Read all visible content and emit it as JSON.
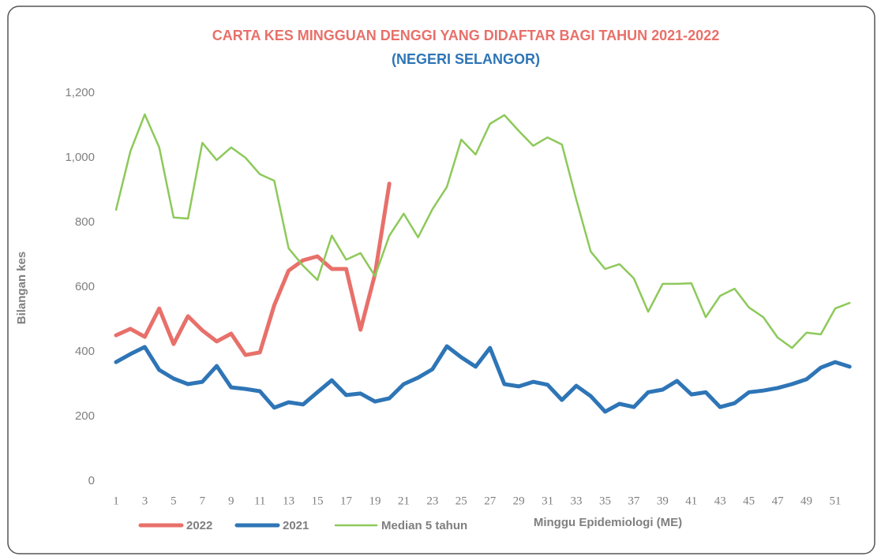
{
  "chart_data": {
    "type": "line",
    "title": "CARTA KES MINGGUAN DENGGI YANG DIDAFTAR BAGI TAHUN 2021-2022",
    "subtitle": "(NEGERI SELANGOR)",
    "y_label": "Bilangan kes",
    "x_label": "Minggu Epidemiologi (ME)",
    "categories": [
      1,
      null,
      3,
      null,
      5,
      null,
      7,
      null,
      9,
      null,
      11,
      null,
      13,
      null,
      15,
      null,
      17,
      null,
      19,
      null,
      21,
      null,
      23,
      null,
      25,
      null,
      27,
      null,
      29,
      null,
      31,
      null,
      33,
      null,
      35,
      null,
      37,
      null,
      39,
      null,
      41,
      null,
      43,
      null,
      45,
      null,
      47,
      null,
      49,
      null,
      51,
      null
    ],
    "ylim": [
      0,
      1200
    ],
    "yticks": [
      0,
      200,
      400,
      600,
      800,
      {
        "value": 1000,
        "label": "1,000"
      },
      {
        "value": 1200,
        "label": "1,200"
      }
    ],
    "grid": false,
    "legend": "bottom-left",
    "series": [
      {
        "name": "2022",
        "color": "#e8706a",
        "values": [
          451,
          471,
          446,
          534,
          424,
          510,
          466,
          432,
          456,
          390,
          398,
          544,
          651,
          683,
          695,
          656,
          656,
          468,
          640,
          920,
          null,
          null,
          null,
          null,
          null,
          null,
          null,
          null,
          null,
          null,
          null,
          null,
          null,
          null,
          null,
          null,
          null,
          null,
          null,
          null,
          null,
          null,
          null,
          null,
          null,
          null,
          null,
          null,
          null,
          null,
          null,
          null
        ]
      },
      {
        "name": "2021",
        "color": "#2e75b6",
        "values": [
          368,
          393,
          415,
          344,
          317,
          300,
          307,
          356,
          290,
          285,
          278,
          227,
          244,
          237,
          275,
          312,
          266,
          271,
          246,
          256,
          300,
          320,
          346,
          417,
          383,
          354,
          412,
          300,
          293,
          307,
          298,
          251,
          295,
          263,
          215,
          239,
          229,
          275,
          283,
          310,
          268,
          275,
          229,
          241,
          275,
          280,
          288,
          300,
          315,
          351,
          368,
          354
        ]
      },
      {
        "name": "Median 5 tahun",
        "color": "#8dc95a",
        "values": [
          839,
          1020,
          1134,
          1032,
          815,
          812,
          1046,
          993,
          1032,
          1000,
          949,
          929,
          720,
          666,
          622,
          759,
          685,
          705,
          634,
          759,
          827,
          754,
          841,
          910,
          1056,
          1010,
          1105,
          1132,
          1083,
          1037,
          1063,
          1041,
          871,
          710,
          656,
          671,
          627,
          524,
          610,
          610,
          612,
          507,
          573,
          595,
          537,
          507,
          444,
          412,
          459,
          454,
          534,
          551
        ]
      }
    ]
  }
}
